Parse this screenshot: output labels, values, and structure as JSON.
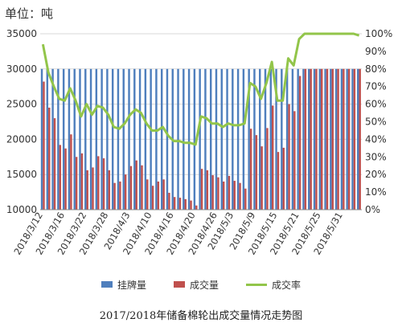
{
  "unit_label": "单位：吨",
  "caption": "2017/2018年储备棉轮出成交量情况走势图",
  "colors": {
    "listed": "#4f7fbd",
    "traded": "#c0504d",
    "rate": "#92c54a"
  },
  "chart_data": {
    "type": "bar",
    "categories": [
      "2018/3/12",
      "2018/3/13",
      "2018/3/14",
      "2018/3/15",
      "2018/3/16",
      "2018/3/19",
      "2018/3/20",
      "2018/3/21",
      "2018/3/22",
      "2018/3/23",
      "2018/3/26",
      "2018/3/27",
      "2018/3/28",
      "2018/3/29",
      "2018/3/30",
      "2018/4/2",
      "2018/4/3",
      "2018/4/4",
      "2018/4/8",
      "2018/4/9",
      "2018/4/10",
      "2018/4/11",
      "2018/4/12",
      "2018/4/13",
      "2018/4/16",
      "2018/4/17",
      "2018/4/18",
      "2018/4/19",
      "2018/4/20",
      "2018/4/23",
      "2018/4/24",
      "2018/4/25",
      "2018/4/26",
      "2018/4/27",
      "2018/5/2",
      "2018/5/3",
      "2018/5/4",
      "2018/5/7",
      "2018/5/8",
      "2018/5/9",
      "2018/5/10",
      "2018/5/11",
      "2018/5/14",
      "2018/5/15",
      "2018/5/16",
      "2018/5/17",
      "2018/5/18",
      "2018/5/21",
      "2018/5/22",
      "2018/5/23",
      "2018/5/24",
      "2018/5/25",
      "2018/5/28",
      "2018/5/29",
      "2018/5/30",
      "2018/5/31",
      "2018/6/1",
      "2018/6/4",
      "2018/6/5"
    ],
    "tick_labels": [
      "2018/3/12",
      "2018/3/16",
      "2018/3/22",
      "2018/3/28",
      "2018/4/3",
      "2018/4/10",
      "2018/4/16",
      "2018/4/20",
      "2018/4/26",
      "2018/5/3",
      "2018/5/9",
      "2018/5/15",
      "2018/5/21",
      "2018/5/25",
      "2018/5/31"
    ],
    "series": [
      {
        "name": "挂牌量",
        "axis": "left",
        "values": [
          30000,
          30000,
          30000,
          30000,
          30000,
          30000,
          30000,
          30000,
          30000,
          30000,
          30000,
          30000,
          30000,
          30000,
          30000,
          30000,
          30000,
          30000,
          30000,
          30000,
          30000,
          30000,
          30000,
          30000,
          30000,
          30000,
          30000,
          30000,
          30000,
          30000,
          30000,
          30000,
          30000,
          30000,
          30000,
          30000,
          30000,
          30000,
          30000,
          30000,
          30000,
          30000,
          30000,
          30000,
          30000,
          30000,
          30000,
          30000,
          30000,
          30000,
          30000,
          30000,
          30000,
          30000,
          30000,
          30000,
          30000,
          30000,
          30000
        ]
      },
      {
        "name": "成交量",
        "axis": "left",
        "values": [
          28200,
          24500,
          23000,
          19200,
          18700,
          20700,
          17500,
          18000,
          15600,
          16000,
          17600,
          17300,
          15600,
          13800,
          14000,
          15000,
          16200,
          17000,
          16300,
          14300,
          13400,
          14000,
          14300,
          12400,
          11800,
          11700,
          11500,
          11300,
          10600,
          15800,
          15600,
          14900,
          14600,
          14000,
          14800,
          14100,
          13800,
          13000,
          21500,
          20600,
          19000,
          21600,
          24800,
          18200,
          18800,
          25000,
          24000,
          29000,
          30000,
          30000,
          30000,
          30000,
          30000,
          30000,
          30000,
          30000,
          30000,
          30000,
          30000
        ]
      },
      {
        "name": "成交率",
        "axis": "right",
        "values": [
          94,
          78,
          70,
          63,
          62,
          69,
          62,
          53,
          60,
          54,
          59,
          58,
          54,
          47,
          46,
          49,
          54,
          57,
          55,
          49,
          45,
          45,
          47,
          42,
          39,
          39,
          38,
          38,
          37,
          53,
          52,
          49,
          49,
          47,
          49,
          48,
          48,
          49,
          72,
          70,
          63,
          72,
          84,
          62,
          62,
          86,
          82,
          97,
          100,
          100,
          100,
          100,
          100,
          100,
          100,
          100,
          100,
          100,
          99
        ]
      }
    ],
    "left_axis": {
      "min": 10000,
      "max": 35000,
      "ticks": [
        10000,
        15000,
        20000,
        25000,
        30000,
        35000
      ]
    },
    "right_axis": {
      "min": 0,
      "max": 100,
      "ticks": [
        "0%",
        "10%",
        "20%",
        "30%",
        "40%",
        "50%",
        "60%",
        "70%",
        "80%",
        "90%",
        "100%"
      ]
    },
    "grid": true,
    "legend_position": "bottom"
  }
}
